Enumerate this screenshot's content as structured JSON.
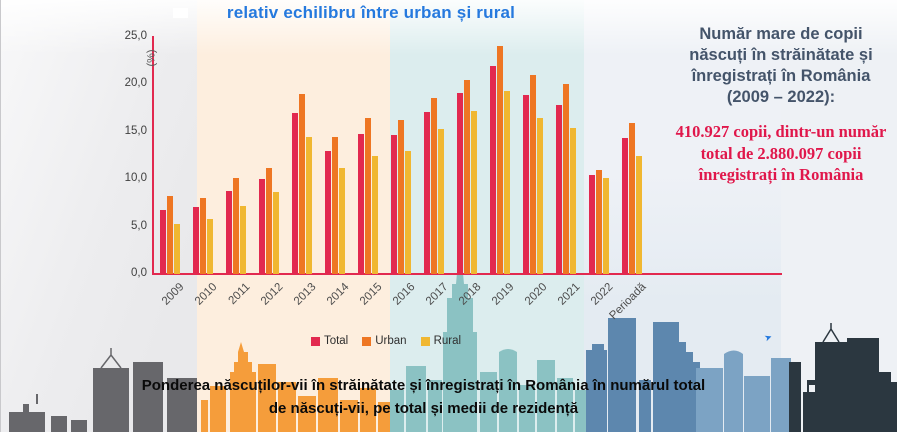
{
  "chart_data": {
    "type": "bar",
    "title": "relativ echilibru între urban și rural",
    "ylabel": "(%)",
    "xlabel": "",
    "categories": [
      "2009",
      "2010",
      "2011",
      "2012",
      "2013",
      "2014",
      "2015",
      "2016",
      "2017",
      "2018",
      "2019",
      "2020",
      "2021",
      "2022",
      "Perioadă"
    ],
    "series": [
      {
        "name": "Total",
        "color": "#e2294f",
        "values": [
          6.8,
          7.1,
          8.8,
          10.0,
          17.0,
          13.0,
          14.8,
          14.7,
          17.1,
          19.1,
          21.9,
          18.9,
          17.8,
          10.4,
          14.3
        ]
      },
      {
        "name": "Urban",
        "color": "#ee7623",
        "values": [
          8.2,
          8.0,
          10.1,
          11.2,
          19.0,
          14.4,
          16.5,
          16.2,
          18.6,
          20.5,
          24.1,
          21.0,
          20.0,
          11.0,
          15.9
        ]
      },
      {
        "name": "Rural",
        "color": "#f0b731",
        "values": [
          5.3,
          5.8,
          7.2,
          8.7,
          14.4,
          11.2,
          12.5,
          13.0,
          15.3,
          17.2,
          19.3,
          16.5,
          15.4,
          10.1,
          12.5
        ]
      }
    ],
    "ylim": [
      0,
      25
    ],
    "yticks": [
      "0,0",
      "5,0",
      "10,0",
      "15,0",
      "20,0",
      "25,0"
    ],
    "grid": false,
    "legend_position": "bottom"
  },
  "right_panel": {
    "heading": "Număr mare de copii născuți în străinătate și înregistrați în România (2009 – 2022):",
    "highlight": "410.927 copii, dintr-un număr total de 2.880.097 copii înregistrați în România"
  },
  "caption": {
    "line1": "Ponderea născuților-vii în străinătate și înregistrați în România în numărul total",
    "line2": "de născuți-vii, pe total și medii de rezidență"
  },
  "colors": {
    "total": "#e2294f",
    "urban": "#ee7623",
    "rural": "#f0b731",
    "axis": "#e2294f",
    "title_blue": "#2579de",
    "heading_slate": "#44546a",
    "highlight_red": "#e0174b",
    "band_gray": "#e9e9eb",
    "band_peach": "#fdeede",
    "band_teal": "#dcedee",
    "band_blue": "#e4ebf2",
    "band_light": "#eef1f5",
    "skyline_gray": "#67676b",
    "skyline_orange": "#f59d3b",
    "skyline_teal": "#85bfc0",
    "skyline_blue_dark": "#5d87ae",
    "skyline_blue_light": "#7ca3c4",
    "skyline_charcoal": "#2b3740"
  }
}
